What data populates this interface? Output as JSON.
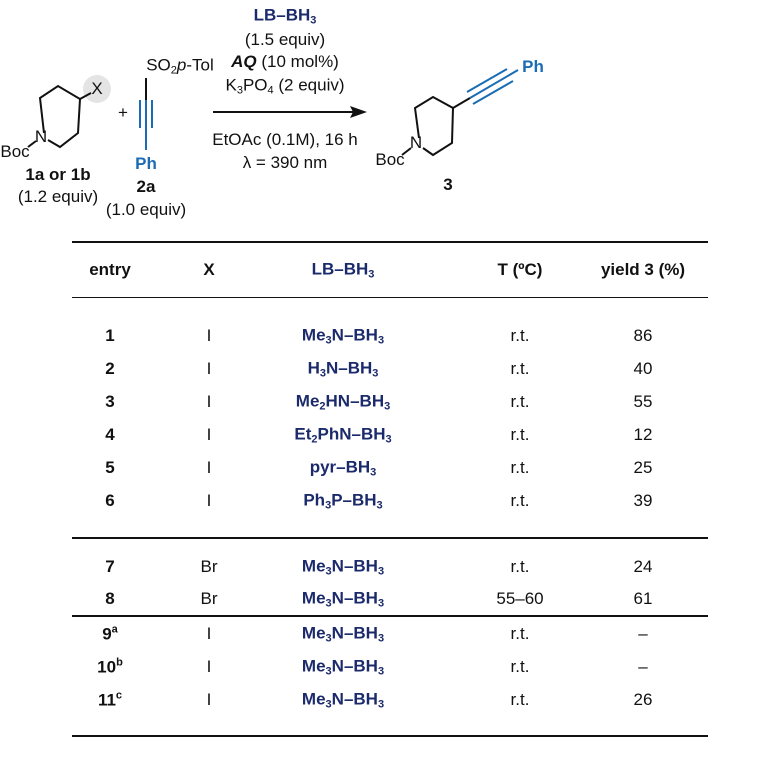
{
  "scheme": {
    "substrate": {
      "group_x": "X",
      "protecting_group": "Boc",
      "atom_n": "N",
      "label": "1a or 1b",
      "equiv": "(1.2 equiv)"
    },
    "plus": "+",
    "reagent": {
      "sulfonyl": "SO2p-Tol",
      "aryl": "Ph",
      "label": "2a",
      "equiv": "(1.0 equiv)"
    },
    "conditions": {
      "borane": "LB–BH3",
      "borane_equiv": "(1.5 equiv)",
      "catalyst": "AQ",
      "catalyst_loading": "(10 mol%)",
      "base": "K3PO4 (2 equiv)",
      "solvent_time": "EtOAc (0.1M), 16 h",
      "wavelength": "λ = 390 nm"
    },
    "product": {
      "aryl": "Ph",
      "protecting_group": "Boc",
      "atom_n": "N",
      "label": "3"
    },
    "colors": {
      "borane": "#1b2a6b",
      "alkyne": "#1a6db4",
      "highlight": "#e4e4e4"
    }
  },
  "table": {
    "headers": [
      "entry",
      "X",
      "LB–BH3",
      "T (ºC)",
      "yield 3 (%)"
    ],
    "rows": [
      {
        "entry": "1",
        "note": "",
        "x": "I",
        "lb": "Me3N–BH3",
        "t": "r.t.",
        "yield": "86"
      },
      {
        "entry": "2",
        "note": "",
        "x": "I",
        "lb": "H3N–BH3",
        "t": "r.t.",
        "yield": "40"
      },
      {
        "entry": "3",
        "note": "",
        "x": "I",
        "lb": "Me2HN–BH3",
        "t": "r.t.",
        "yield": "55"
      },
      {
        "entry": "4",
        "note": "",
        "x": "I",
        "lb": "Et2PhN–BH3",
        "t": "r.t.",
        "yield": "12"
      },
      {
        "entry": "5",
        "note": "",
        "x": "I",
        "lb": "pyr–BH3",
        "t": "r.t.",
        "yield": "25"
      },
      {
        "entry": "6",
        "note": "",
        "x": "I",
        "lb": "Ph3P–BH3",
        "t": "r.t.",
        "yield": "39"
      },
      {
        "entry": "7",
        "note": "",
        "x": "Br",
        "lb": "Me3N–BH3",
        "t": "r.t.",
        "yield": "24"
      },
      {
        "entry": "8",
        "note": "",
        "x": "Br",
        "lb": "Me3N–BH3",
        "t": "55–60",
        "yield": "61"
      },
      {
        "entry": "9",
        "note": "a",
        "x": "I",
        "lb": "Me3N–BH3",
        "t": "r.t.",
        "yield": "–"
      },
      {
        "entry": "10",
        "note": "b",
        "x": "I",
        "lb": "Me3N–BH3",
        "t": "r.t.",
        "yield": "–"
      },
      {
        "entry": "11",
        "note": "c",
        "x": "I",
        "lb": "Me3N–BH3",
        "t": "r.t.",
        "yield": "26"
      }
    ]
  }
}
